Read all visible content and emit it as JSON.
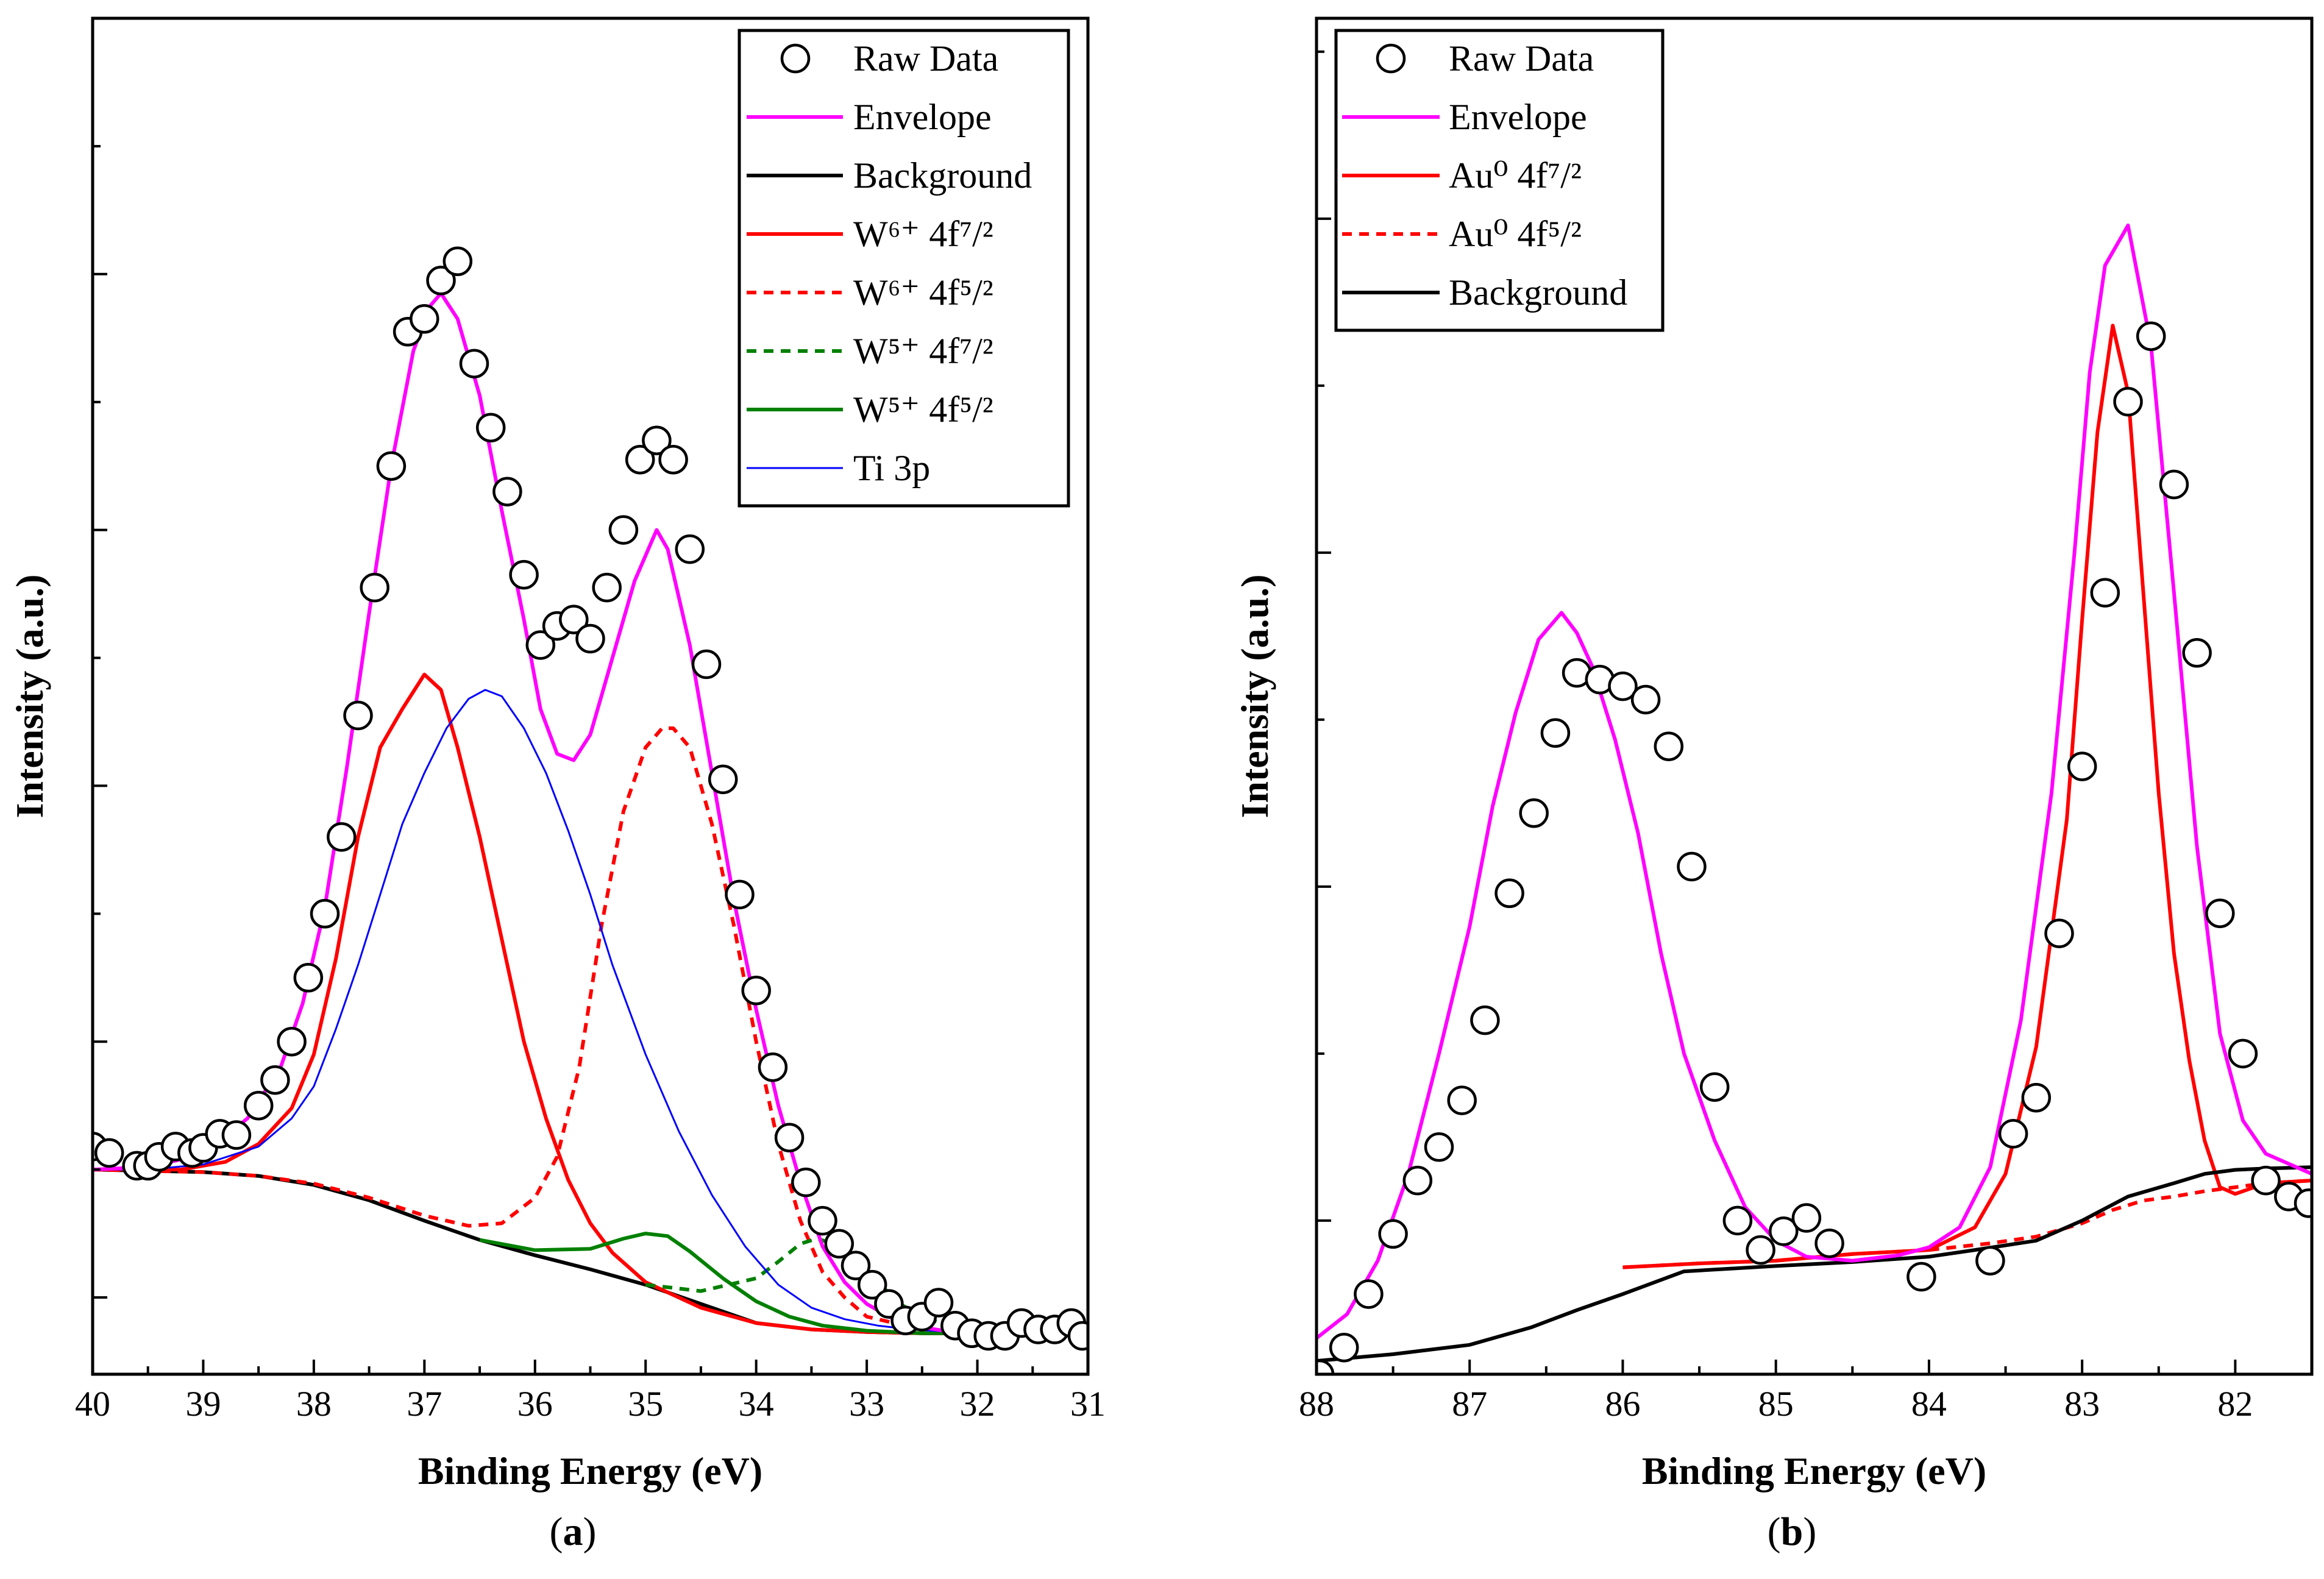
{
  "figure": {
    "caption_a": "a",
    "caption_b": "b"
  },
  "chart_data": [
    {
      "id": "a",
      "type": "line",
      "title": "",
      "xlabel": "Binding Energy (eV)",
      "ylabel": "Intensity (a.u.)",
      "xlim": [
        40,
        31
      ],
      "ylim": [
        -0.06,
        1.0
      ],
      "x_ticks": [
        40,
        39,
        38,
        37,
        36,
        35,
        34,
        33,
        32,
        31
      ],
      "y_major_ticks": [
        0.0,
        0.2,
        0.4,
        0.6,
        0.8,
        1.0
      ],
      "y_minor_ticks": [
        0.1,
        0.3,
        0.5,
        0.7,
        0.9
      ],
      "show_y_tick_labels": false,
      "legend_position": "top-right",
      "legend": [
        {
          "key": "raw",
          "text": "Raw Data"
        },
        {
          "key": "envelope",
          "text": "Envelope"
        },
        {
          "key": "background",
          "text": "Background"
        },
        {
          "key": "w6_72",
          "text": "W⁶⁺ 4f⁷/²"
        },
        {
          "key": "w6_52",
          "text": "W⁶⁺ 4f⁵/²"
        },
        {
          "key": "w5_72",
          "text": "W⁵⁺ 4f⁷/²"
        },
        {
          "key": "w5_52",
          "text": "W⁵⁺ 4f⁵/²"
        },
        {
          "key": "ti3p",
          "text": "Ti 3p"
        }
      ],
      "series": [
        {
          "key": "background",
          "name": "Background",
          "color": "#000000",
          "dash": "",
          "x": [
            40,
            39,
            38.5,
            38,
            37.5,
            37,
            36.5,
            36,
            35.5,
            35,
            34.5,
            34,
            33.5,
            33,
            32.5,
            32,
            31.5,
            31
          ],
          "y": [
            0.1,
            0.098,
            0.095,
            0.088,
            0.076,
            0.06,
            0.045,
            0.033,
            0.022,
            0.01,
            -0.005,
            -0.02,
            -0.025,
            -0.027,
            -0.028,
            -0.028,
            -0.028,
            -0.028
          ]
        },
        {
          "key": "w6_72",
          "name": "W⁶⁺ 4f⁷/²",
          "color": "#ff0000",
          "dash": "",
          "x": [
            40,
            39.2,
            38.8,
            38.5,
            38.2,
            38.0,
            37.8,
            37.6,
            37.4,
            37.2,
            37.0,
            36.85,
            36.7,
            36.5,
            36.3,
            36.1,
            35.9,
            35.7,
            35.5,
            35.3,
            35.0,
            34.5,
            34.0,
            33.5,
            33.0,
            32.5,
            32.0,
            31.5,
            31
          ],
          "y": [
            0.1,
            0.1,
            0.106,
            0.12,
            0.148,
            0.19,
            0.265,
            0.36,
            0.43,
            0.46,
            0.487,
            0.475,
            0.43,
            0.36,
            0.28,
            0.2,
            0.14,
            0.092,
            0.058,
            0.035,
            0.012,
            -0.008,
            -0.02,
            -0.025,
            -0.027,
            -0.028,
            -0.028,
            -0.028,
            -0.028
          ]
        },
        {
          "key": "w6_52",
          "name": "W⁶⁺ 4f⁵/²",
          "color": "#ff0000",
          "dash": "16,12",
          "x": [
            40,
            39,
            38.5,
            38,
            37.5,
            37,
            36.6,
            36.3,
            36.0,
            35.8,
            35.6,
            35.4,
            35.2,
            35.0,
            34.85,
            34.75,
            34.6,
            34.4,
            34.2,
            34.0,
            33.8,
            33.6,
            33.4,
            33.2,
            33.0,
            32.5,
            32.0,
            31.5,
            31
          ],
          "y": [
            0.1,
            0.098,
            0.095,
            0.089,
            0.078,
            0.064,
            0.056,
            0.058,
            0.078,
            0.11,
            0.18,
            0.29,
            0.38,
            0.43,
            0.445,
            0.445,
            0.43,
            0.37,
            0.29,
            0.2,
            0.12,
            0.06,
            0.02,
            0.0,
            -0.015,
            -0.025,
            -0.028,
            -0.028,
            -0.028
          ]
        },
        {
          "key": "w5_72",
          "name": "W⁵⁺ 4f⁷/²",
          "color": "#008000",
          "dash": "16,12",
          "x": [
            35.0,
            34.5,
            34.0,
            33.8,
            33.6,
            33.45,
            33.3,
            33.1,
            32.9,
            32.7,
            32.5,
            32.2,
            31.8,
            31.4,
            31.0
          ],
          "y": [
            0.01,
            0.005,
            0.015,
            0.028,
            0.042,
            0.046,
            0.042,
            0.03,
            0.012,
            -0.005,
            -0.015,
            -0.024,
            -0.027,
            -0.028,
            -0.028
          ]
        },
        {
          "key": "w5_52",
          "name": "W⁵⁺ 4f⁵/²",
          "color": "#008000",
          "dash": "",
          "x": [
            36.5,
            36.0,
            35.5,
            35.2,
            35.0,
            34.8,
            34.6,
            34.3,
            34.0,
            33.7,
            33.4,
            33.0,
            32.5,
            32.0,
            31.5,
            31.0
          ],
          "y": [
            0.045,
            0.037,
            0.038,
            0.046,
            0.05,
            0.048,
            0.036,
            0.015,
            -0.003,
            -0.015,
            -0.022,
            -0.026,
            -0.028,
            -0.028,
            -0.028,
            -0.028
          ]
        },
        {
          "key": "ti3p",
          "name": "Ti 3p",
          "color": "#0000ff",
          "dash": "",
          "x": [
            40,
            39.5,
            39.0,
            38.5,
            38.2,
            38.0,
            37.8,
            37.6,
            37.4,
            37.2,
            37.0,
            36.8,
            36.6,
            36.45,
            36.3,
            36.1,
            35.9,
            35.7,
            35.5,
            35.3,
            35.0,
            34.7,
            34.4,
            34.1,
            33.8,
            33.5,
            33.2,
            32.9,
            32.6,
            32.2,
            31.8,
            31.4,
            31
          ],
          "y": [
            0.1,
            0.1,
            0.104,
            0.118,
            0.14,
            0.165,
            0.21,
            0.26,
            0.315,
            0.37,
            0.41,
            0.445,
            0.468,
            0.475,
            0.47,
            0.445,
            0.41,
            0.365,
            0.315,
            0.26,
            0.19,
            0.13,
            0.08,
            0.04,
            0.01,
            -0.008,
            -0.017,
            -0.022,
            -0.025,
            -0.027,
            -0.028,
            -0.028,
            -0.028
          ]
        },
        {
          "key": "envelope",
          "name": "Envelope",
          "color": "#ff00ff",
          "dash": "",
          "x": [
            40,
            39.5,
            39.0,
            38.6,
            38.3,
            38.1,
            37.9,
            37.7,
            37.5,
            37.3,
            37.1,
            36.95,
            36.85,
            36.7,
            36.5,
            36.3,
            36.1,
            35.95,
            35.8,
            35.65,
            35.5,
            35.3,
            35.1,
            34.95,
            34.9,
            34.8,
            34.6,
            34.4,
            34.2,
            34.0,
            33.8,
            33.6,
            33.4,
            33.2,
            33.0,
            32.8,
            32.6,
            32.3,
            32.0,
            31.5,
            31.0
          ],
          "y": [
            0.1,
            0.102,
            0.112,
            0.14,
            0.18,
            0.23,
            0.305,
            0.415,
            0.535,
            0.65,
            0.74,
            0.775,
            0.785,
            0.765,
            0.705,
            0.615,
            0.53,
            0.46,
            0.425,
            0.42,
            0.44,
            0.5,
            0.56,
            0.59,
            0.6,
            0.585,
            0.51,
            0.41,
            0.31,
            0.225,
            0.15,
            0.09,
            0.04,
            0.012,
            -0.005,
            -0.015,
            -0.022,
            -0.026,
            -0.028,
            -0.028,
            -0.028
          ]
        }
      ],
      "raw_data": {
        "x": [
          40.0,
          39.85,
          39.6,
          39.5,
          39.4,
          39.25,
          39.1,
          39.0,
          38.85,
          38.7,
          38.5,
          38.35,
          38.2,
          38.05,
          37.9,
          37.75,
          37.6,
          37.45,
          37.3,
          37.15,
          37.0,
          36.85,
          36.7,
          36.55,
          36.4,
          36.25,
          36.1,
          35.95,
          35.8,
          35.65,
          35.5,
          35.35,
          35.2,
          35.05,
          34.9,
          34.75,
          34.6,
          34.45,
          34.3,
          34.15,
          34.0,
          33.85,
          33.7,
          33.55,
          33.4,
          33.25,
          33.1,
          32.95,
          32.8,
          32.65,
          32.5,
          32.35,
          32.2,
          32.05,
          31.9,
          31.75,
          31.6,
          31.45,
          31.3,
          31.15,
          31.05
        ],
        "y": [
          0.118,
          0.113,
          0.103,
          0.103,
          0.11,
          0.118,
          0.113,
          0.117,
          0.128,
          0.127,
          0.15,
          0.17,
          0.2,
          0.25,
          0.3,
          0.36,
          0.455,
          0.555,
          0.65,
          0.755,
          0.765,
          0.795,
          0.81,
          0.73,
          0.68,
          0.63,
          0.565,
          0.51,
          0.525,
          0.53,
          0.515,
          0.555,
          0.6,
          0.655,
          0.67,
          0.655,
          0.585,
          0.495,
          0.405,
          0.315,
          0.24,
          0.18,
          0.125,
          0.09,
          0.06,
          0.042,
          0.025,
          0.01,
          -0.005,
          -0.018,
          -0.015,
          -0.004,
          -0.022,
          -0.028,
          -0.03,
          -0.03,
          -0.02,
          -0.025,
          -0.025,
          -0.02,
          -0.03
        ]
      }
    },
    {
      "id": "b",
      "type": "line",
      "title": "",
      "xlabel": "Binding Energy (eV)",
      "ylabel": "Intensity (a.u.)",
      "xlim": [
        88,
        81.5
      ],
      "ylim": [
        -0.015,
        1.0
      ],
      "x_ticks": [
        88,
        87,
        86,
        85,
        84,
        83,
        82
      ],
      "y_major_ticks": [
        0.1,
        0.35,
        0.6,
        0.85
      ],
      "y_minor_ticks": [
        0.225,
        0.475,
        0.725,
        0.975
      ],
      "show_y_tick_labels": false,
      "legend_position": "top-left",
      "legend": [
        {
          "key": "raw",
          "text": "Raw Data"
        },
        {
          "key": "envelope",
          "text": "Envelope"
        },
        {
          "key": "au72",
          "text": "Au⁰ 4f⁷/²"
        },
        {
          "key": "au52",
          "text": "Au⁰ 4f⁵/²"
        },
        {
          "key": "background",
          "text": "Background"
        }
      ],
      "series": [
        {
          "key": "au52",
          "name": "Au⁰ 4f⁵/²",
          "color": "#ff0000",
          "dash": "16,12",
          "x": [
            86.0,
            85.5,
            85.0,
            84.5,
            84.0,
            83.6,
            83.3,
            83.0,
            82.8,
            82.6,
            82.4,
            82.2,
            82.0,
            81.8,
            81.5
          ],
          "y": [
            0.065,
            0.068,
            0.07,
            0.075,
            0.078,
            0.083,
            0.088,
            0.098,
            0.108,
            0.115,
            0.118,
            0.122,
            0.125,
            0.128,
            0.13
          ]
        },
        {
          "key": "au72",
          "name": "Au⁰ 4f⁷/²",
          "color": "#ff0000",
          "dash": "",
          "x": [
            86.0,
            85.5,
            85.0,
            84.5,
            84.0,
            83.7,
            83.5,
            83.3,
            83.1,
            83.0,
            82.9,
            82.8,
            82.7,
            82.6,
            82.5,
            82.4,
            82.3,
            82.2,
            82.1,
            82.0,
            81.8,
            81.5
          ],
          "y": [
            0.065,
            0.068,
            0.07,
            0.075,
            0.078,
            0.095,
            0.135,
            0.23,
            0.4,
            0.55,
            0.69,
            0.77,
            0.72,
            0.57,
            0.42,
            0.3,
            0.22,
            0.16,
            0.125,
            0.12,
            0.128,
            0.13
          ]
        },
        {
          "key": "background",
          "name": "Background",
          "color": "#000000",
          "dash": "",
          "x": [
            88.0,
            87.5,
            87.0,
            86.6,
            86.3,
            86.0,
            85.6,
            85.0,
            84.5,
            84.0,
            83.7,
            83.3,
            83.0,
            82.7,
            82.4,
            82.2,
            82.0,
            81.8,
            81.5
          ],
          "y": [
            -0.005,
            0.0,
            0.007,
            0.02,
            0.033,
            0.045,
            0.062,
            0.066,
            0.069,
            0.073,
            0.078,
            0.085,
            0.1,
            0.118,
            0.128,
            0.135,
            0.138,
            0.139,
            0.14
          ]
        },
        {
          "key": "envelope",
          "name": "Envelope",
          "color": "#ff00ff",
          "dash": "",
          "x": [
            88.0,
            87.8,
            87.6,
            87.4,
            87.2,
            87.0,
            86.85,
            86.7,
            86.55,
            86.4,
            86.3,
            86.2,
            86.05,
            85.9,
            85.75,
            85.6,
            85.4,
            85.2,
            85.0,
            84.8,
            84.5,
            84.2,
            84.0,
            83.8,
            83.6,
            83.4,
            83.2,
            83.05,
            82.95,
            82.85,
            82.7,
            82.55,
            82.4,
            82.25,
            82.1,
            81.95,
            81.8,
            81.5
          ],
          "y": [
            0.012,
            0.03,
            0.07,
            0.135,
            0.225,
            0.32,
            0.41,
            0.48,
            0.535,
            0.555,
            0.54,
            0.515,
            0.46,
            0.39,
            0.3,
            0.225,
            0.16,
            0.11,
            0.085,
            0.073,
            0.07,
            0.074,
            0.08,
            0.095,
            0.14,
            0.25,
            0.42,
            0.6,
            0.735,
            0.815,
            0.845,
            0.755,
            0.57,
            0.38,
            0.24,
            0.175,
            0.15,
            0.135
          ]
        }
      ],
      "raw_data": {
        "x": [
          87.98,
          87.82,
          87.66,
          87.5,
          87.34,
          87.2,
          87.05,
          86.9,
          86.74,
          86.58,
          86.44,
          86.3,
          86.15,
          86.0,
          85.85,
          85.7,
          85.55,
          85.4,
          85.25,
          85.1,
          84.95,
          84.8,
          84.65,
          84.05,
          83.6,
          83.45,
          83.3,
          83.15,
          83.0,
          82.85,
          82.7,
          82.55,
          82.4,
          82.25,
          82.1,
          81.95,
          81.8,
          81.65,
          81.52
        ],
        "y": [
          -0.015,
          0.005,
          0.045,
          0.09,
          0.13,
          0.155,
          0.19,
          0.25,
          0.345,
          0.405,
          0.465,
          0.51,
          0.505,
          0.5,
          0.49,
          0.455,
          0.365,
          0.2,
          0.1,
          0.078,
          0.092,
          0.102,
          0.083,
          0.058,
          0.07,
          0.165,
          0.192,
          0.315,
          0.44,
          0.57,
          0.713,
          0.762,
          0.651,
          0.525,
          0.33,
          0.225,
          0.13,
          0.118,
          0.113
        ]
      }
    }
  ]
}
